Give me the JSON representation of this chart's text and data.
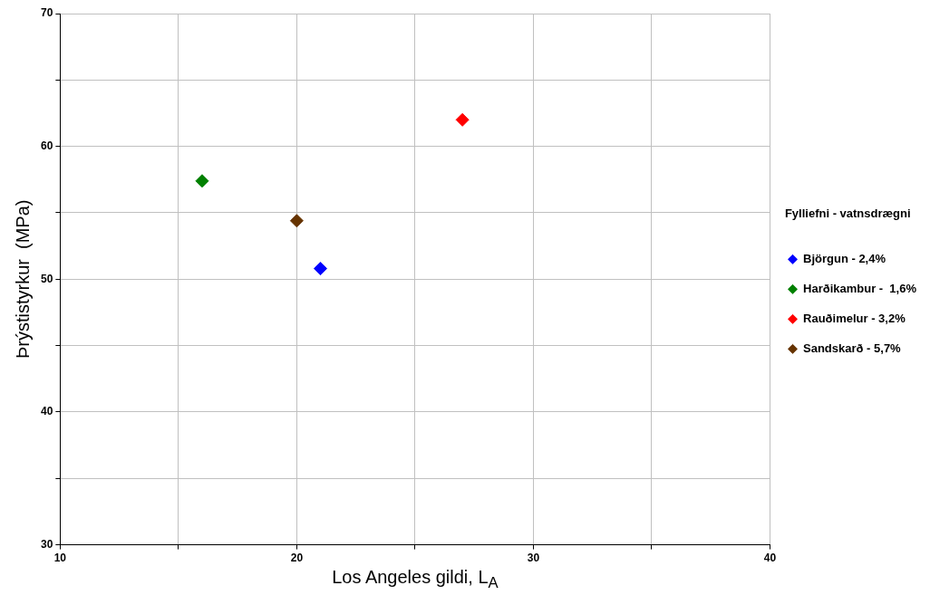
{
  "chart_data": {
    "type": "scatter",
    "xlabel": "Los Angeles gildi, L$_{A}$",
    "ylabel": "Þrýstistyrkur  (MPa)",
    "legend_title": "Fylliefni - vatnsdrægni",
    "series": [
      {
        "name": "Björgun - 2,4%",
        "color": "#0000ff",
        "x": [
          21
        ],
        "values": [
          50.8
        ]
      },
      {
        "name": "Harðikambur -  1,6%",
        "color": "#008000",
        "x": [
          16
        ],
        "values": [
          57.4
        ]
      },
      {
        "name": "Rauðimelur - 3,2%",
        "color": "#ff0000",
        "x": [
          27
        ],
        "values": [
          62
        ]
      },
      {
        "name": "Sandskarð - 5,7%",
        "color": "#663300",
        "x": [
          20
        ],
        "values": [
          54.4
        ]
      }
    ],
    "xlim": [
      10,
      40
    ],
    "xticks": [
      10,
      {
        "value": 15,
        "label": null
      },
      20,
      {
        "value": 25,
        "label": null
      },
      30,
      {
        "value": 35,
        "label": null
      },
      40
    ],
    "ylim": [
      30,
      70
    ],
    "yticks": [
      30,
      {
        "value": 35,
        "label": null
      },
      40,
      {
        "value": 45,
        "label": null
      },
      50,
      {
        "value": 55,
        "label": null
      },
      60,
      {
        "value": 65,
        "label": null
      },
      70
    ],
    "grid": true,
    "legend": "right",
    "marker": "diamond"
  }
}
